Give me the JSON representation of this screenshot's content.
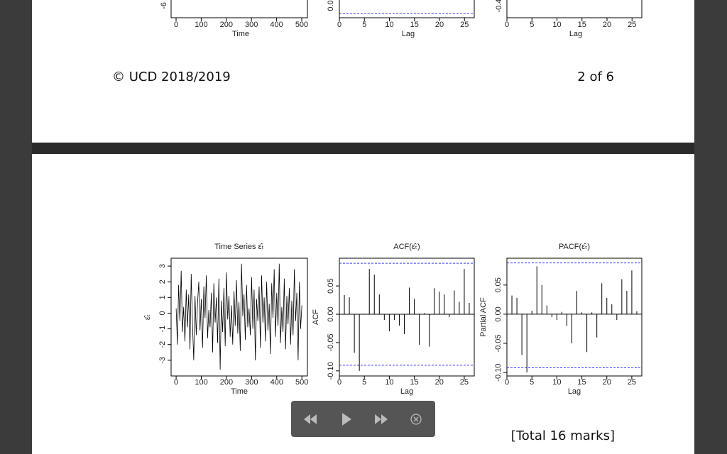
{
  "top_page": {
    "plots": [
      {
        "ytick_partial": "-6",
        "xticks": [
          0,
          100,
          200,
          300,
          400,
          500
        ],
        "xlabel": "Time"
      },
      {
        "ytick_partial": "0.0",
        "xticks": [
          0,
          5,
          10,
          15,
          20,
          25
        ],
        "xlabel": "Lag"
      },
      {
        "ytick_partial": "-0.4",
        "xticks": [
          0,
          5,
          10,
          15,
          20,
          25
        ],
        "xlabel": "Lag"
      }
    ],
    "footer": "© UCD 2018/2019",
    "page_number": "2 of 6"
  },
  "chart_data": [
    {
      "type": "line",
      "title": "Time Series  ε̂ₜ",
      "ylabel": "ε̂ₜ",
      "xlabel": "Time",
      "color": "#000000",
      "x": [
        0,
        5,
        10,
        15,
        20,
        25,
        30,
        35,
        40,
        45,
        50,
        55,
        60,
        65,
        70,
        75,
        80,
        85,
        90,
        95,
        100,
        105,
        110,
        115,
        120,
        125,
        130,
        135,
        140,
        145,
        150,
        155,
        160,
        165,
        170,
        175,
        180,
        185,
        190,
        195,
        200,
        205,
        210,
        215,
        220,
        225,
        230,
        235,
        240,
        245,
        250,
        255,
        260,
        265,
        270,
        275,
        280,
        285,
        290,
        295,
        300,
        305,
        310,
        315,
        320,
        325,
        330,
        335,
        340,
        345,
        350,
        355,
        360,
        365,
        370,
        375,
        380,
        385,
        390,
        395,
        400,
        405,
        410,
        415,
        420,
        425,
        430,
        435,
        440,
        445,
        450,
        455,
        460,
        465,
        470,
        475,
        480,
        485,
        490,
        495,
        500
      ],
      "values": [
        0.3,
        -2.0,
        1.8,
        -0.5,
        2.7,
        -1.2,
        0.4,
        -1.8,
        1.5,
        -0.9,
        1.2,
        -2.3,
        2.5,
        -0.7,
        -3.0,
        1.1,
        -1.4,
        0.6,
        2.0,
        -1.1,
        0.9,
        -2.2,
        1.7,
        -0.3,
        2.4,
        -1.6,
        0.2,
        -0.9,
        1.3,
        -2.5,
        1.9,
        -0.6,
        1.0,
        -1.9,
        2.2,
        -3.6,
        0.8,
        -1.2,
        1.6,
        -2.1,
        2.6,
        -0.4,
        1.1,
        -1.5,
        0.5,
        -2.0,
        1.4,
        -0.8,
        2.1,
        -1.3,
        0.7,
        -2.4,
        3.15,
        -0.2,
        1.2,
        -1.7,
        1.8,
        -0.9,
        0.3,
        -1.4,
        2.3,
        -1.0,
        1.5,
        -3.0,
        0.9,
        -0.5,
        1.7,
        -2.2,
        2.4,
        -0.6,
        1.0,
        -1.8,
        2.0,
        -1.1,
        0.6,
        -2.6,
        1.9,
        -0.3,
        2.8,
        -1.5,
        1.3,
        -0.8,
        3.15,
        -1.9,
        0.4,
        -1.2,
        2.2,
        -2.3,
        1.1,
        -0.7,
        1.6,
        -2.0,
        0.8,
        -1.4,
        2.8,
        -0.5,
        1.3,
        -3.0,
        2.0,
        -1.0,
        0.5
      ],
      "xlim": [
        -20,
        522
      ],
      "ylim": [
        -4,
        3.5
      ],
      "xticks": [
        0,
        100,
        200,
        300,
        400,
        500
      ],
      "yticks": [
        -3,
        -2,
        -1,
        0,
        1,
        2,
        3
      ]
    },
    {
      "type": "bar",
      "title": "ACF(ε̂ₜ)",
      "ylabel": "ACF",
      "xlabel": "Lag",
      "color": "#000000",
      "x": [
        1,
        2,
        3,
        4,
        5,
        6,
        7,
        8,
        9,
        10,
        11,
        12,
        13,
        14,
        15,
        16,
        17,
        18,
        19,
        20,
        21,
        22,
        23,
        24,
        25,
        26
      ],
      "values": [
        0.034,
        0.03,
        -0.068,
        -0.1,
        0.001,
        0.08,
        0.07,
        0.035,
        -0.01,
        -0.03,
        -0.01,
        -0.02,
        -0.035,
        0.047,
        0.027,
        -0.054,
        0.002,
        -0.057,
        0.046,
        0.04,
        0.035,
        -0.005,
        0.042,
        0.022,
        0.08,
        0.02
      ],
      "bounds": [
        -0.09,
        0.09
      ],
      "bounds_color": "#3a3aff",
      "xlim": [
        0,
        27
      ],
      "ylim": [
        -0.109,
        0.099
      ],
      "xticks": [
        0,
        5,
        10,
        15,
        20,
        25
      ],
      "yticks": [
        {
          "value": -0.1,
          "label": "-0.10"
        },
        -0.05,
        {
          "value": 0,
          "label": "0.00"
        },
        0.05
      ]
    },
    {
      "type": "bar",
      "title": "PACF(ε̂ₜ)",
      "ylabel": "Partial ACF",
      "xlabel": "Lag",
      "color": "#000000",
      "x": [
        1,
        2,
        3,
        4,
        5,
        6,
        7,
        8,
        9,
        10,
        11,
        12,
        13,
        14,
        15,
        16,
        17,
        18,
        19,
        20,
        21,
        22,
        23,
        24,
        25,
        26
      ],
      "values": [
        0.032,
        0.028,
        -0.07,
        -0.1,
        0.006,
        0.082,
        0.05,
        0.015,
        -0.005,
        -0.01,
        0.004,
        -0.02,
        -0.05,
        0.04,
        0.003,
        -0.065,
        0.003,
        -0.04,
        0.053,
        0.028,
        0.017,
        -0.01,
        0.06,
        0.04,
        0.075,
        0.005
      ],
      "bounds": [
        -0.092,
        0.088
      ],
      "bounds_color": "#3a3aff",
      "xlim": [
        0,
        27
      ],
      "ylim": [
        -0.106,
        0.096
      ],
      "xticks": [
        0,
        5,
        10,
        15,
        20,
        25
      ],
      "yticks": [
        {
          "value": -0.1,
          "label": "-0.10"
        },
        -0.05,
        {
          "value": 0,
          "label": "0.00"
        },
        0.05
      ]
    }
  ],
  "total_marks": "[Total 16 marks]"
}
